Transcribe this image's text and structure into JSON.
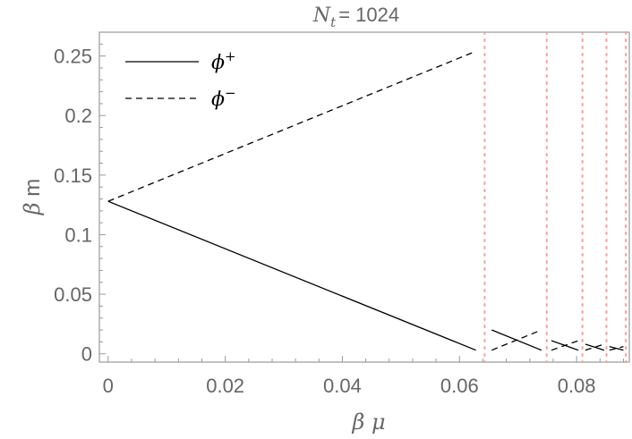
{
  "chart_data": {
    "type": "line",
    "title": {
      "main": "N",
      "sub": "t",
      "rest": "= 1024"
    },
    "xlabel": "β μ",
    "ylabel": {
      "sym": "β",
      "rest": " m"
    },
    "xlim": [
      -0.0015,
      0.089
    ],
    "ylim": [
      -0.007,
      0.27
    ],
    "xticks": [
      0,
      0.02,
      0.04,
      0.06,
      0.08
    ],
    "xtick_labels": [
      "0",
      "0.02",
      "0.04",
      "0.06",
      "0.08"
    ],
    "yticks": [
      0,
      0.05,
      0.1,
      0.15,
      0.2,
      0.25
    ],
    "ytick_labels": [
      "0",
      "0.05",
      "0.1",
      "0.15",
      "0.2",
      "0.25"
    ],
    "grid": false,
    "legend": {
      "position": "top-left",
      "entries": [
        {
          "sym": "ϕ",
          "sup": "+",
          "style": "solid"
        },
        {
          "sym": "ϕ",
          "sup": "−",
          "style": "dashed"
        }
      ]
    },
    "series": [
      {
        "style": "solid",
        "segments": [
          [
            [
              0,
              0.128
            ],
            [
              0.0628,
              0.003
            ]
          ],
          [
            [
              0.0655,
              0.02
            ],
            [
              0.074,
              0.003
            ]
          ],
          [
            [
              0.0757,
              0.011
            ],
            [
              0.0803,
              0.003
            ]
          ],
          [
            [
              0.0815,
              0.008
            ],
            [
              0.0847,
              0.003
            ]
          ],
          [
            [
              0.0856,
              0.006
            ],
            [
              0.088,
              0.003
            ]
          ]
        ]
      },
      {
        "style": "dashed",
        "segments": [
          [
            [
              0,
              0.128
            ],
            [
              0.0628,
              0.254
            ]
          ],
          [
            [
              0.0655,
              0.003
            ],
            [
              0.074,
              0.02
            ]
          ],
          [
            [
              0.0757,
              0.003
            ],
            [
              0.0803,
              0.011
            ]
          ],
          [
            [
              0.0815,
              0.003
            ],
            [
              0.0847,
              0.008
            ]
          ],
          [
            [
              0.0856,
              0.003
            ],
            [
              0.088,
              0.006
            ]
          ]
        ]
      }
    ],
    "vlines": {
      "style": "dotted",
      "color": "#ff9a9a",
      "x": [
        0.0643,
        0.0749,
        0.081,
        0.0851,
        0.0884
      ]
    },
    "colors": {
      "axis": "#999999",
      "text": "#666666",
      "line": "#000000"
    }
  }
}
